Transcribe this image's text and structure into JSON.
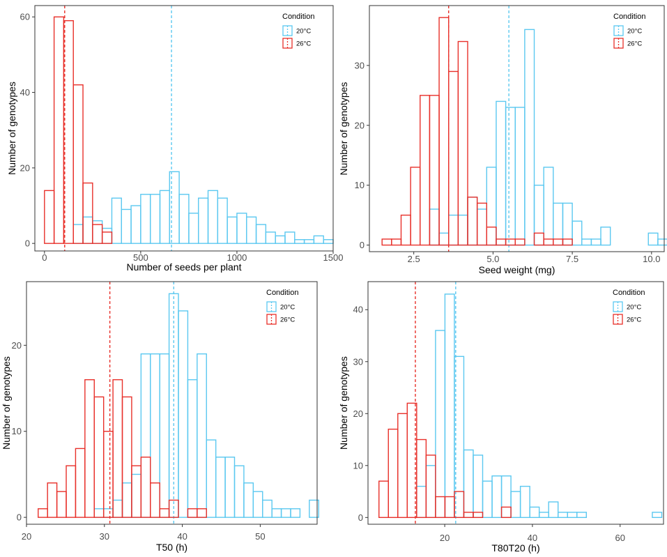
{
  "colors": {
    "c20": "#5BC8F0",
    "c26": "#E8302A",
    "frame": "#333333"
  },
  "chart_data": [
    {
      "type": "histogram",
      "xlabel": "Number of seeds per plant",
      "ylabel": "Number of genotypes",
      "xlim": [
        -50,
        1500
      ],
      "ylim": [
        -2,
        63
      ],
      "xticks": [
        0,
        500,
        1000,
        1500
      ],
      "xtick_labels": [
        "0",
        "500",
        "1000",
        "1500"
      ],
      "yticks": [
        0,
        20,
        40,
        60
      ],
      "ytick_labels": [
        "0",
        "20",
        "40",
        "60"
      ],
      "legend": {
        "title": "Condition",
        "entries": [
          "20°C",
          "26°C"
        ],
        "position": "top-right"
      },
      "series": [
        {
          "name": "20°C",
          "color": "c20",
          "x_start": 0,
          "bin_width": 50,
          "counts": [
            0,
            0,
            0,
            5,
            7,
            6,
            4,
            12,
            9,
            10,
            13,
            13,
            14,
            19,
            13,
            8,
            12,
            14,
            12,
            7,
            8,
            7,
            5,
            3,
            2,
            3,
            1,
            1,
            2,
            1
          ],
          "mean": 660
        },
        {
          "name": "26°C",
          "color": "c26",
          "x_start": 0,
          "bin_width": 50,
          "counts": [
            14,
            60,
            59,
            42,
            16,
            5,
            3
          ],
          "mean": 105
        }
      ]
    },
    {
      "type": "histogram",
      "xlabel": "Seed weight (mg)",
      "ylabel": "Number of genotypes",
      "xlim": [
        1.1,
        10.4
      ],
      "ylim": [
        -1.1,
        40
      ],
      "xticks": [
        2.5,
        5.0,
        7.5,
        10.0
      ],
      "xtick_labels": [
        "2.5",
        "5.0",
        "7.5",
        "10.0"
      ],
      "yticks": [
        0,
        10,
        20,
        30
      ],
      "ytick_labels": [
        "0",
        "10",
        "20",
        "30"
      ],
      "legend": {
        "title": "Condition",
        "entries": [
          "20°C",
          "26°C"
        ],
        "position": "top-right"
      },
      "series": [
        {
          "name": "20°C",
          "color": "c20",
          "x_start": 1.5,
          "bin_width": 0.3,
          "counts": [
            0,
            0,
            0,
            0,
            0,
            6,
            2,
            5,
            5,
            8,
            6,
            13,
            24,
            23,
            23,
            36,
            10,
            13,
            7,
            7,
            4,
            1,
            1,
            3,
            0,
            0,
            0,
            0,
            2,
            1
          ],
          "mean": 5.5
        },
        {
          "name": "26°C",
          "color": "c26",
          "x_start": 1.5,
          "bin_width": 0.3,
          "counts": [
            1,
            1,
            5,
            13,
            25,
            25,
            38,
            29,
            34,
            8,
            7,
            3,
            1,
            1,
            1,
            0,
            2,
            1,
            1,
            1
          ],
          "mean": 3.6
        }
      ]
    },
    {
      "type": "histogram",
      "xlabel": "T50 (h)",
      "ylabel": "Number of genotypes",
      "xlim": [
        20,
        57.3
      ],
      "ylim": [
        -0.8,
        27.4
      ],
      "xticks": [
        20,
        30,
        40,
        50
      ],
      "xtick_labels": [
        "20",
        "30",
        "40",
        "50"
      ],
      "yticks": [
        0,
        10,
        20
      ],
      "ytick_labels": [
        "0",
        "10",
        "20"
      ],
      "legend": {
        "title": "Condition",
        "entries": [
          "20°C",
          "26°C"
        ],
        "position": "top-right"
      },
      "series": [
        {
          "name": "20°C",
          "color": "c20",
          "x_start": 21.5,
          "bin_width": 1.2,
          "counts": [
            0,
            0,
            0,
            0,
            0,
            0,
            1,
            1,
            2,
            4,
            5,
            19,
            19,
            19,
            26,
            24,
            16,
            19,
            9,
            7,
            7,
            6,
            4,
            3,
            2,
            1,
            1,
            1,
            0,
            2
          ],
          "mean": 38.9
        },
        {
          "name": "26°C",
          "color": "c26",
          "x_start": 21.5,
          "bin_width": 1.2,
          "counts": [
            1,
            4,
            3,
            6,
            8,
            16,
            14,
            10,
            16,
            14,
            6,
            7,
            4,
            1,
            2,
            0,
            1,
            1
          ],
          "mean": 30.7
        }
      ]
    },
    {
      "type": "histogram",
      "xlabel": "T80T20 (h)",
      "ylabel": "Number of genotypes",
      "xlim": [
        2.5,
        69.9
      ],
      "ylim": [
        -1.3,
        45.4
      ],
      "xticks": [
        20,
        40,
        60
      ],
      "xtick_labels": [
        "20",
        "40",
        "60"
      ],
      "yticks": [
        0,
        10,
        20,
        30,
        40
      ],
      "ytick_labels": [
        "0",
        "10",
        "20",
        "30",
        "40"
      ],
      "legend": {
        "title": "Condition",
        "entries": [
          "20°C",
          "26°C"
        ],
        "position": "top-right"
      },
      "series": [
        {
          "name": "20°C",
          "color": "c20",
          "x_start": 5.0,
          "bin_width": 2.15,
          "counts": [
            0,
            0,
            0,
            0,
            6,
            10,
            36,
            43,
            31,
            13,
            12,
            7,
            8,
            8,
            5,
            6,
            2,
            1,
            3,
            1,
            1,
            1,
            0,
            0,
            0,
            0,
            0,
            0,
            0,
            1
          ],
          "mean": 22.5
        },
        {
          "name": "26°C",
          "color": "c26",
          "x_start": 5.0,
          "bin_width": 2.15,
          "counts": [
            7,
            17,
            20,
            22,
            15,
            12,
            4,
            4,
            5,
            1,
            1,
            0,
            0,
            2
          ],
          "mean": 13.3
        }
      ]
    }
  ]
}
